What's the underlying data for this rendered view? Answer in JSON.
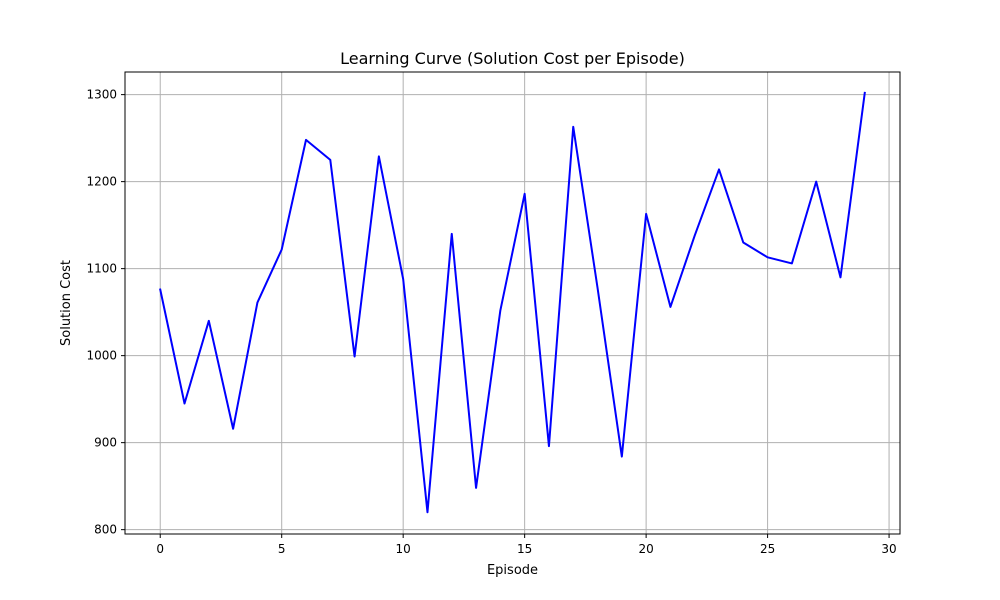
{
  "chart_data": {
    "type": "line",
    "title": "Learning Curve (Solution Cost per Episode)",
    "xlabel": "Episode",
    "ylabel": "Solution Cost",
    "xlim": [
      -1.45,
      30.45
    ],
    "ylim": [
      795,
      1326
    ],
    "xticks": [
      0,
      5,
      10,
      15,
      20,
      25,
      30
    ],
    "yticks": [
      800,
      900,
      1000,
      1100,
      1200,
      1300
    ],
    "grid": true,
    "series": [
      {
        "color": "#0000ff",
        "x": [
          0,
          1,
          2,
          3,
          4,
          5,
          6,
          7,
          8,
          9,
          10,
          11,
          12,
          13,
          14,
          15,
          16,
          17,
          18,
          19,
          20,
          21,
          22,
          23,
          24,
          25,
          26,
          27,
          28,
          29
        ],
        "values": [
          1076,
          945,
          1040,
          916,
          1061,
          1122,
          1248,
          1225,
          999,
          1229,
          1088,
          820,
          1140,
          848,
          1052,
          1186,
          896,
          1263,
          1078,
          884,
          1163,
          1056,
          1138,
          1214,
          1130,
          1113,
          1106,
          1200,
          1090,
          1302
        ]
      }
    ]
  }
}
